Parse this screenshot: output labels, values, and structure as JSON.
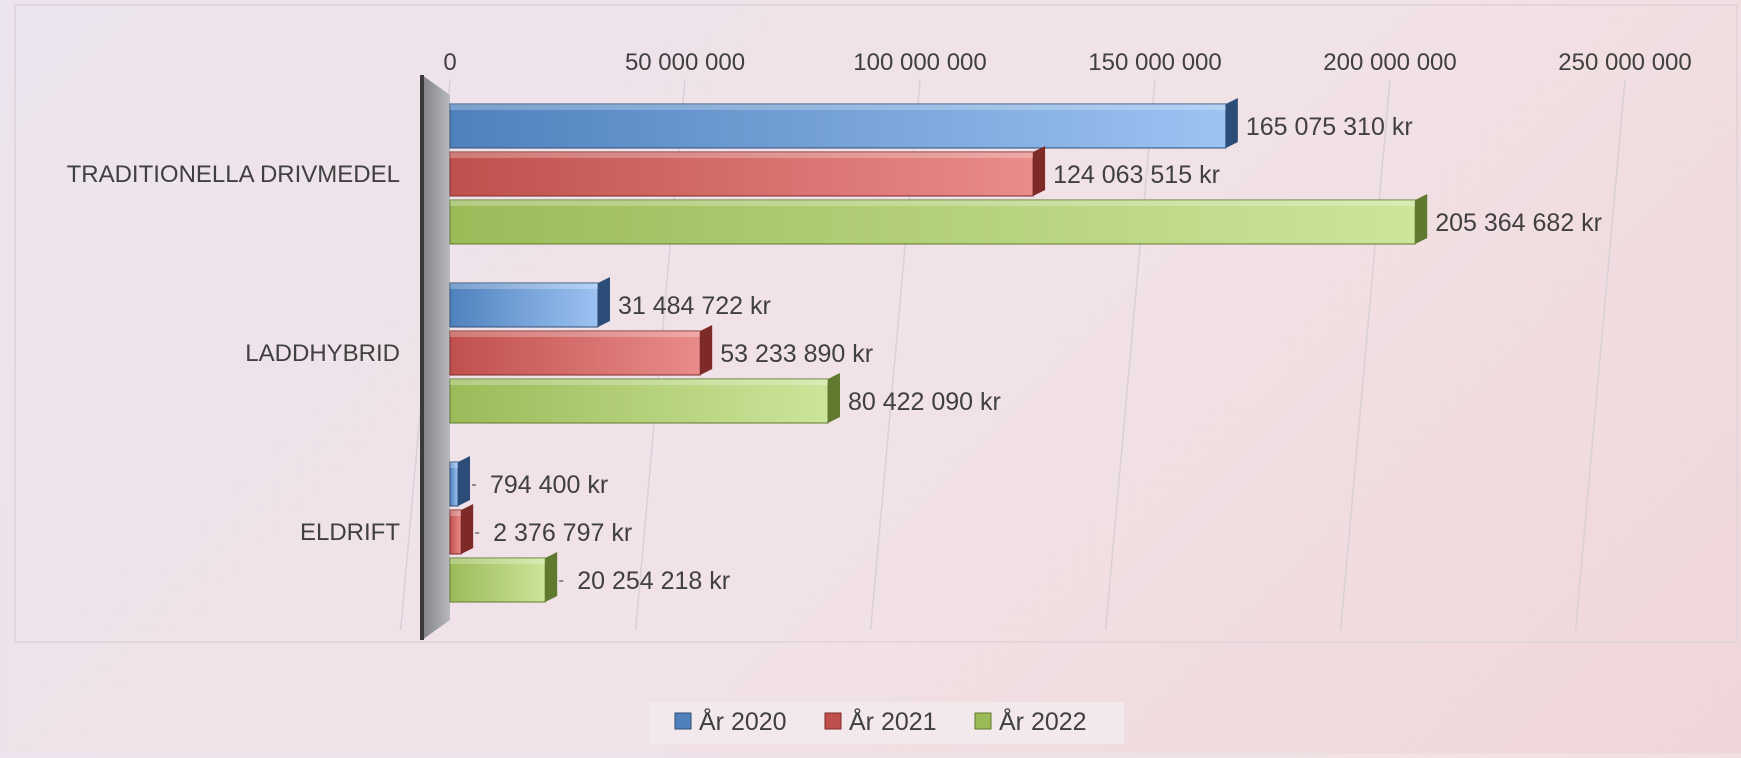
{
  "chart_data": {
    "type": "bar",
    "orientation": "horizontal",
    "categories": [
      "TRADITIONELLA DRIVMEDEL",
      "LADDHYBRID",
      "ELDRIFT"
    ],
    "series": [
      {
        "name": "År 2020",
        "values": [
          165075310,
          31484722,
          794400
        ],
        "labels": [
          "165 075 310 kr",
          "31 484 722 kr",
          "794 400 kr"
        ]
      },
      {
        "name": "År 2021",
        "values": [
          124063515,
          53233890,
          2376797
        ],
        "labels": [
          "124 063 515 kr",
          "53 233 890 kr",
          "2 376 797 kr"
        ]
      },
      {
        "name": "År 2022",
        "values": [
          205364682,
          80422090,
          20254218
        ],
        "labels": [
          "205 364 682 kr",
          "80 422 090 kr",
          "20 254 218 kr"
        ]
      }
    ],
    "x_ticks": [
      0,
      50000000,
      100000000,
      150000000,
      200000000,
      250000000
    ],
    "x_tick_labels": [
      "0",
      "50 000 000",
      "100 000 000",
      "150 000 000",
      "200 000 000",
      "250 000 000"
    ],
    "xlim": [
      0,
      250000000
    ],
    "grid": true,
    "legend": "bottom",
    "colors": {
      "series": [
        "#4f81bd",
        "#c0504d",
        "#9bbb59"
      ],
      "series_light": [
        "#9cc3f2",
        "#e98c8a",
        "#cbe59a"
      ],
      "series_dark": [
        "#2c4d77",
        "#7d2a28",
        "#5f7a2e"
      ],
      "text": "#404040"
    }
  }
}
